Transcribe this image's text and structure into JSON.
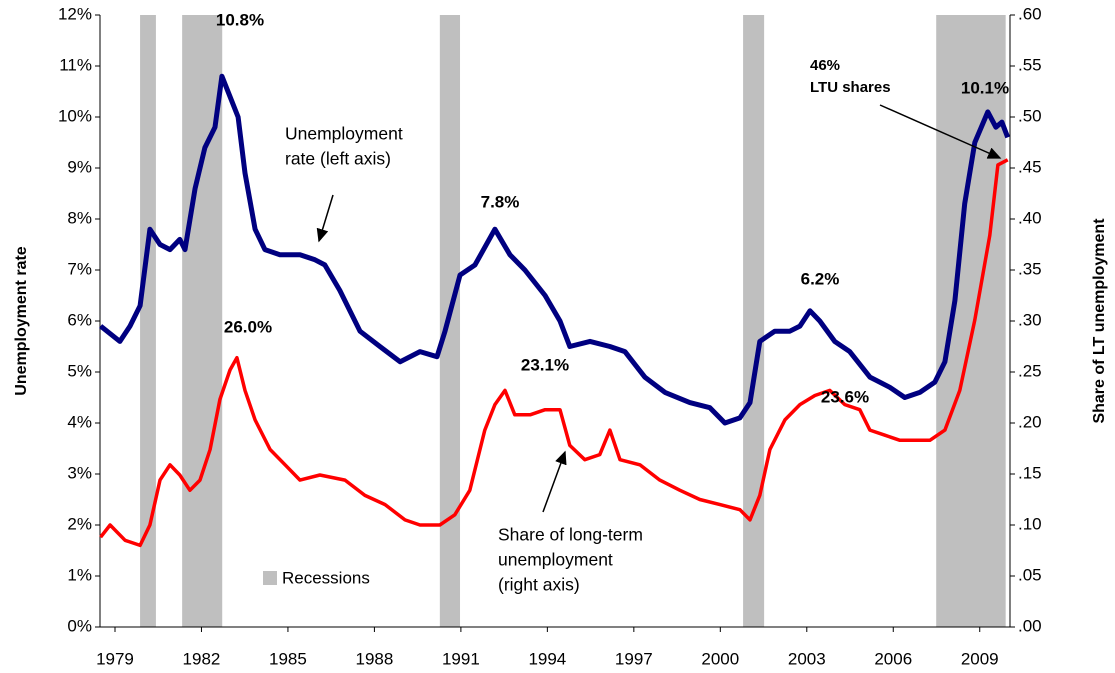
{
  "chart_data": {
    "type": "line",
    "y_title": "Unemployment rate",
    "y2_title": "Share of LT unemployment",
    "xlim": [
      1978.48,
      2010.05
    ],
    "xticks": [
      1979,
      1982,
      1985,
      1988,
      1991,
      1994,
      1997,
      2000,
      2003,
      2006,
      2009
    ],
    "ylim": [
      0,
      12
    ],
    "yticks": [
      {
        "value": 0,
        "label": "0%"
      },
      {
        "value": 1,
        "label": "1%"
      },
      {
        "value": 2,
        "label": "2%"
      },
      {
        "value": 3,
        "label": "3%"
      },
      {
        "value": 4,
        "label": "4%"
      },
      {
        "value": 5,
        "label": "5%"
      },
      {
        "value": 6,
        "label": "6%"
      },
      {
        "value": 7,
        "label": "7%"
      },
      {
        "value": 8,
        "label": "8%"
      },
      {
        "value": 9,
        "label": "9%"
      },
      {
        "value": 10,
        "label": "10%"
      },
      {
        "value": 11,
        "label": "11%"
      },
      {
        "value": 12,
        "label": "12%"
      }
    ],
    "y2lim": [
      0,
      0.6
    ],
    "y2ticks": [
      {
        "value": 0,
        "label": ".00"
      },
      {
        "value": 0.05,
        "label": ".05"
      },
      {
        "value": 0.1,
        "label": ".10"
      },
      {
        "value": 0.15,
        "label": ".15"
      },
      {
        "value": 0.2,
        "label": ".20"
      },
      {
        "value": 0.25,
        "label": ".25"
      },
      {
        "value": 0.3,
        "label": ".30"
      },
      {
        "value": 0.35,
        "label": ".35"
      },
      {
        "value": 0.4,
        "label": ".40"
      },
      {
        "value": 0.45,
        "label": ".45"
      },
      {
        "value": 0.5,
        "label": ".50"
      },
      {
        "value": 0.55,
        "label": ".55"
      },
      {
        "value": 0.6,
        "label": ".60"
      }
    ],
    "recessions_label": "Recessions",
    "recession_color": "#bfbfbf",
    "recessions": [
      [
        1979.87,
        1980.42
      ],
      [
        1981.33,
        1982.72
      ],
      [
        1990.27,
        1990.97
      ],
      [
        2000.79,
        2001.52
      ],
      [
        2007.49,
        2009.9
      ]
    ],
    "series": [
      {
        "color": "#000080",
        "axis": "y",
        "x": [
          1978.5,
          1979.17,
          1979.52,
          1979.87,
          1980.21,
          1980.56,
          1980.91,
          1981.25,
          1981.43,
          1981.78,
          1982.12,
          1982.47,
          1982.71,
          1982.99,
          1983.27,
          1983.51,
          1983.86,
          1984.2,
          1984.72,
          1985.42,
          1985.94,
          1986.28,
          1986.8,
          1987.5,
          1988.19,
          1988.89,
          1989.58,
          1990.17,
          1990.45,
          1990.97,
          1991.49,
          1992.18,
          1992.7,
          1993.22,
          1993.92,
          1994.44,
          1994.78,
          1995.48,
          1996.17,
          1996.69,
          1997.38,
          1998.08,
          1998.94,
          1999.64,
          2000.16,
          2000.68,
          2001.03,
          2001.37,
          2001.89,
          2002.41,
          2002.76,
          2003.11,
          2003.45,
          2003.97,
          2004.49,
          2005.19,
          2005.88,
          2006.4,
          2006.92,
          2007.44,
          2007.79,
          2008.14,
          2008.48,
          2008.83,
          2009.28,
          2009.56,
          2009.77,
          2009.97
        ],
        "values": [
          5.9,
          5.6,
          5.9,
          6.3,
          7.8,
          7.5,
          7.4,
          7.6,
          7.4,
          8.6,
          9.4,
          9.8,
          10.8,
          10.4,
          10.0,
          8.9,
          7.8,
          7.4,
          7.3,
          7.3,
          7.2,
          7.1,
          6.6,
          5.8,
          5.5,
          5.2,
          5.4,
          5.3,
          5.8,
          6.9,
          7.1,
          7.8,
          7.3,
          7.0,
          6.5,
          6.0,
          5.5,
          5.6,
          5.5,
          5.4,
          4.9,
          4.6,
          4.4,
          4.3,
          4.0,
          4.1,
          4.4,
          5.6,
          5.8,
          5.8,
          5.9,
          6.2,
          6.0,
          5.6,
          5.4,
          4.9,
          4.7,
          4.5,
          4.6,
          4.8,
          5.2,
          6.4,
          8.3,
          9.5,
          10.1,
          9.8,
          9.9,
          9.6
        ]
      },
      {
        "color": "#ff0000",
        "axis": "y2",
        "x": [
          1978.5,
          1978.83,
          1979.35,
          1979.87,
          1980.21,
          1980.56,
          1980.91,
          1981.25,
          1981.6,
          1981.95,
          1982.3,
          1982.64,
          1982.99,
          1983.23,
          1983.51,
          1983.86,
          1984.38,
          1984.9,
          1985.42,
          1986.11,
          1986.98,
          1987.67,
          1988.37,
          1989.06,
          1989.58,
          1990.27,
          1990.79,
          1991.31,
          1991.83,
          1992.18,
          1992.53,
          1992.87,
          1993.4,
          1993.92,
          1994.44,
          1994.78,
          1995.3,
          1995.82,
          1996.17,
          1996.52,
          1997.21,
          1997.9,
          1998.6,
          1999.29,
          1999.99,
          2000.68,
          2001.03,
          2001.37,
          2001.72,
          2002.24,
          2002.76,
          2003.28,
          2003.8,
          2004.32,
          2004.84,
          2005.19,
          2005.71,
          2006.23,
          2006.75,
          2007.27,
          2007.79,
          2008.31,
          2008.83,
          2009.35,
          2009.63,
          2009.97
        ],
        "values": [
          0.088,
          0.1,
          0.085,
          0.08,
          0.1,
          0.144,
          0.159,
          0.149,
          0.134,
          0.144,
          0.174,
          0.223,
          0.252,
          0.264,
          0.232,
          0.203,
          0.174,
          0.159,
          0.144,
          0.149,
          0.144,
          0.129,
          0.12,
          0.105,
          0.1,
          0.1,
          0.11,
          0.134,
          0.193,
          0.218,
          0.232,
          0.208,
          0.208,
          0.213,
          0.213,
          0.178,
          0.164,
          0.169,
          0.193,
          0.164,
          0.159,
          0.144,
          0.134,
          0.125,
          0.12,
          0.115,
          0.105,
          0.129,
          0.174,
          0.203,
          0.218,
          0.227,
          0.232,
          0.218,
          0.213,
          0.193,
          0.188,
          0.183,
          0.183,
          0.183,
          0.193,
          0.232,
          0.301,
          0.384,
          0.453,
          0.458
        ]
      }
    ],
    "annotations": [
      {
        "lines": [
          "10.8%"
        ]
      },
      {
        "lines": [
          "26.0%"
        ]
      },
      {
        "lines": [
          "7.8%"
        ]
      },
      {
        "lines": [
          "23.1%"
        ]
      },
      {
        "lines": [
          "6.2%"
        ]
      },
      {
        "lines": [
          "23.6%"
        ]
      },
      {
        "lines": [
          "10.1%"
        ]
      },
      {
        "lines": [
          "46%",
          "LTU shares"
        ]
      },
      {
        "lines": [
          "Unemployment",
          "rate (left axis)"
        ]
      },
      {
        "lines": [
          "Share of long-term",
          "unemployment",
          "(right axis)"
        ]
      }
    ]
  }
}
